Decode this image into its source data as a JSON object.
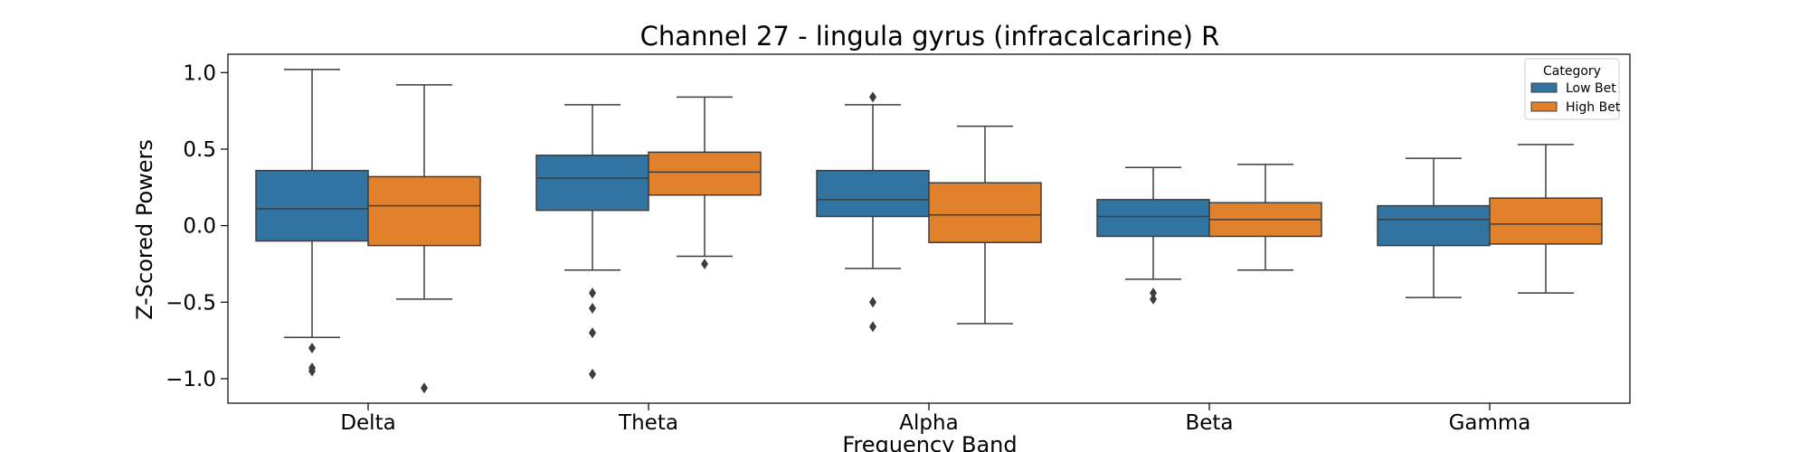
{
  "chart_data": {
    "type": "box",
    "title": "Channel 27 - lingula gyrus (infracalcarine) R",
    "xlabel": "Frequency Band",
    "ylabel": "Z-Scored Powers",
    "ylim": [
      -1.16,
      1.12
    ],
    "yticks": [
      {
        "value": 1.0,
        "label": "1.0"
      },
      {
        "value": 0.5,
        "label": "0.5"
      },
      {
        "value": 0.0,
        "label": "0.0"
      },
      {
        "value": -0.5,
        "label": "−0.5"
      },
      {
        "value": -1.0,
        "label": "−1.0"
      }
    ],
    "categories": [
      "Delta",
      "Theta",
      "Alpha",
      "Beta",
      "Gamma"
    ],
    "legend": {
      "title": "Category",
      "position": "top-right"
    },
    "series": [
      {
        "name": "Low Bet",
        "color": "#3274a1",
        "boxes": [
          {
            "q1": -0.1,
            "median": 0.11,
            "q3": 0.36,
            "whisker_low": -0.73,
            "whisker_high": 1.02,
            "outliers": [
              -0.8,
              -0.93,
              -0.95
            ]
          },
          {
            "q1": 0.1,
            "median": 0.31,
            "q3": 0.46,
            "whisker_low": -0.29,
            "whisker_high": 0.79,
            "outliers": [
              -0.44,
              -0.54,
              -0.7,
              -0.97
            ]
          },
          {
            "q1": 0.06,
            "median": 0.17,
            "q3": 0.36,
            "whisker_low": -0.28,
            "whisker_high": 0.79,
            "outliers": [
              0.84,
              -0.5,
              -0.66
            ]
          },
          {
            "q1": -0.07,
            "median": 0.06,
            "q3": 0.17,
            "whisker_low": -0.35,
            "whisker_high": 0.38,
            "outliers": [
              -0.44,
              -0.48
            ]
          },
          {
            "q1": -0.13,
            "median": 0.04,
            "q3": 0.13,
            "whisker_low": -0.47,
            "whisker_high": 0.44,
            "outliers": []
          }
        ]
      },
      {
        "name": "High Bet",
        "color": "#e1812c",
        "boxes": [
          {
            "q1": -0.13,
            "median": 0.13,
            "q3": 0.32,
            "whisker_low": -0.48,
            "whisker_high": 0.92,
            "outliers": [
              -1.06
            ]
          },
          {
            "q1": 0.2,
            "median": 0.35,
            "q3": 0.48,
            "whisker_low": -0.2,
            "whisker_high": 0.84,
            "outliers": [
              -0.25
            ]
          },
          {
            "q1": -0.11,
            "median": 0.07,
            "q3": 0.28,
            "whisker_low": -0.64,
            "whisker_high": 0.65,
            "outliers": []
          },
          {
            "q1": -0.07,
            "median": 0.04,
            "q3": 0.15,
            "whisker_low": -0.29,
            "whisker_high": 0.4,
            "outliers": []
          },
          {
            "q1": -0.12,
            "median": 0.01,
            "q3": 0.18,
            "whisker_low": -0.44,
            "whisker_high": 0.53,
            "outliers": []
          }
        ]
      }
    ]
  }
}
